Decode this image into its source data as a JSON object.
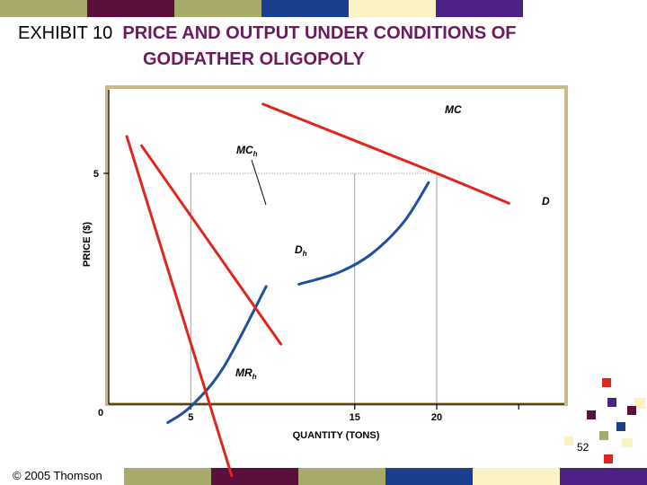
{
  "slide": {
    "exhibit_label": "EXHIBIT 10",
    "title_line1": "PRICE AND OUTPUT UNDER CONDITIONS OF",
    "title_line2": "GODFATHER OLIGOPOLY",
    "page_number": "52",
    "copyright": "© 2005 Thomson",
    "band_colors": [
      "#a8ab6c",
      "#5a0f3d",
      "#a8ab6c",
      "#1b3f8f",
      "#fbf2c4",
      "#4b2283"
    ]
  },
  "chart_data": {
    "type": "line",
    "title": "",
    "xlabel": "QUANTITY (TONS)",
    "ylabel": "PRICE ($)",
    "origin_label": "0",
    "x_ticks": [
      "5",
      "15",
      "20"
    ],
    "y_ticks": [
      "5"
    ],
    "colors": {
      "demand": "#e0261c",
      "cost": "#1f4f9c",
      "frame": "#c9b98a"
    },
    "series": [
      {
        "name": "MC",
        "label": "MC",
        "points": [
          [
            11.6,
            2.6
          ],
          [
            14,
            2.85
          ],
          [
            16,
            3.25
          ],
          [
            18,
            3.95
          ],
          [
            19.5,
            4.8
          ]
        ]
      },
      {
        "name": "D",
        "label": "D",
        "points": [
          [
            9.4,
            6.5
          ],
          [
            20,
            5
          ],
          [
            24.4,
            4.35
          ]
        ]
      },
      {
        "name": "MCh",
        "label": "MCh",
        "points": [
          [
            3.6,
            -0.4
          ],
          [
            5,
            -0.05
          ],
          [
            7,
            0.8
          ],
          [
            9.6,
            2.55
          ]
        ]
      },
      {
        "name": "Dh",
        "label": "Dh",
        "points": [
          [
            2,
            5.6
          ],
          [
            10.5,
            1.3
          ]
        ]
      },
      {
        "name": "MRh",
        "label": "MRh",
        "points": [
          [
            1.1,
            5.8
          ],
          [
            7.5,
            -1.55
          ]
        ]
      }
    ]
  }
}
